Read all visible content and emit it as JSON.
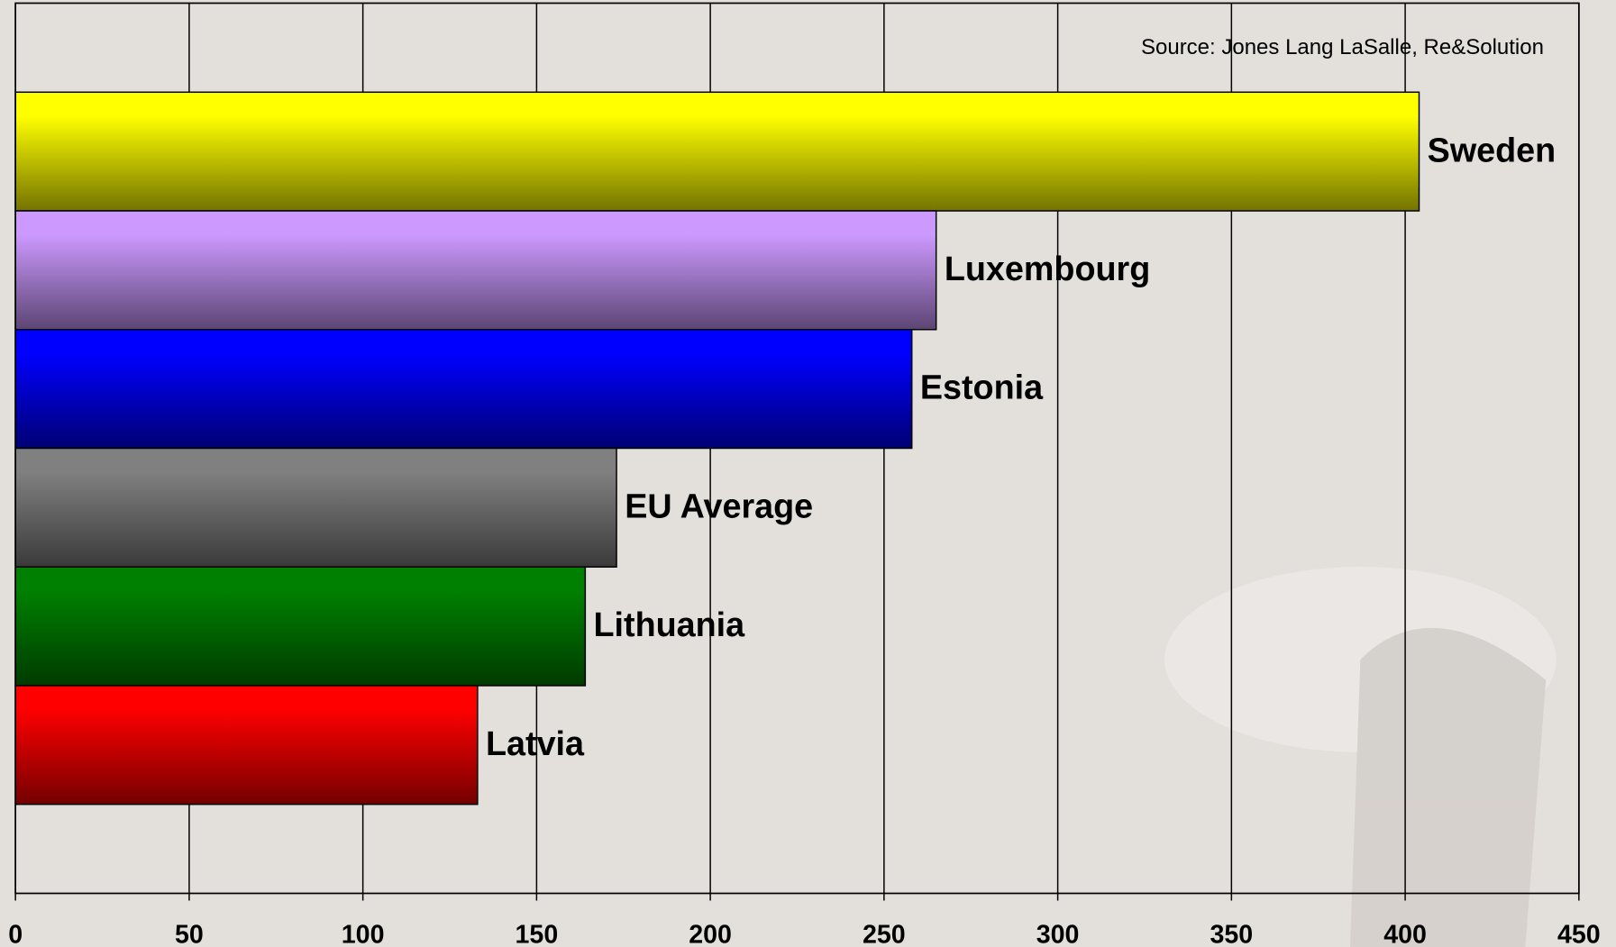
{
  "chart_data": {
    "type": "bar",
    "orientation": "horizontal",
    "annotation": "Source: Jones Lang LaSalle, Re&Solution",
    "categories": [
      "Sweden",
      "Luxembourg",
      "Estonia",
      "EU Average",
      "Lithuania",
      "Latvia"
    ],
    "values": [
      404,
      265,
      258,
      173,
      164,
      133
    ],
    "colors": [
      "#ffff00",
      "#cc99ff",
      "#0000ff",
      "#808080",
      "#008000",
      "#ff0000"
    ],
    "xlim": [
      0,
      450
    ],
    "xticks": [
      0,
      50,
      100,
      150,
      200,
      250,
      300,
      350,
      400,
      450
    ],
    "grid": true
  }
}
